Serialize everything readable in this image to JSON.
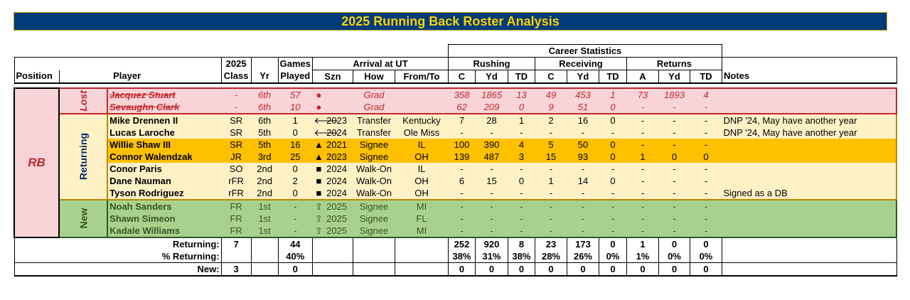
{
  "title": "2025 Running Back Roster Analysis",
  "headers": {
    "career_statistics": "Career Statistics",
    "rushing": "Rushing",
    "receiving": "Receiving",
    "returns": "Returns",
    "position": "Position",
    "player": "Player",
    "class_top": "2025",
    "class_bottom": "Class",
    "yr": "Yr",
    "games_top": "Games",
    "games_bottom": "Played",
    "arrival": "Arrival at UT",
    "szn": "Szn",
    "how": "How",
    "fromto": "From/To",
    "c": "C",
    "yd": "Yd",
    "td": "TD",
    "a": "A",
    "notes": "Notes"
  },
  "position_label": "RB",
  "groups": {
    "lost": "Lost",
    "returning": "Returning",
    "new": "New"
  },
  "icons": {
    "dot": "●",
    "arrow_left": "🡐",
    "triangle": "▲",
    "square": "■",
    "outline_up": "⇧"
  },
  "players": [
    {
      "group": "lost",
      "name": "Jacquez Stuart",
      "cls": "-",
      "yr": "6th",
      "gp": "57",
      "icon": "●",
      "szn": "",
      "how": "Grad",
      "from": "",
      "rc": "358",
      "ryd": "1865",
      "rtd": "13",
      "cc": "49",
      "cyd": "453",
      "ctd": "1",
      "ra": "73",
      "ryd2": "1893",
      "rtd2": "4",
      "notes": ""
    },
    {
      "group": "lost",
      "name": "Sevaughn Clark",
      "cls": "-",
      "yr": "6th",
      "gp": "10",
      "icon": "●",
      "szn": "",
      "how": "Grad",
      "from": "",
      "rc": "62",
      "ryd": "209",
      "rtd": "0",
      "cc": "9",
      "cyd": "51",
      "ctd": "0",
      "ra": "-",
      "ryd2": "-",
      "rtd2": "-",
      "notes": ""
    },
    {
      "group": "ret",
      "hl": false,
      "name": "Mike Drennen II",
      "cls": "SR",
      "yr": "6th",
      "gp": "1",
      "icon": "🡐",
      "szn": "2023",
      "how": "Transfer",
      "from": "Kentucky",
      "rc": "7",
      "ryd": "28",
      "rtd": "1",
      "cc": "2",
      "cyd": "16",
      "ctd": "0",
      "ra": "-",
      "ryd2": "-",
      "rtd2": "-",
      "notes": "DNP '24, May have another year"
    },
    {
      "group": "ret",
      "hl": false,
      "name": "Lucas Laroche",
      "cls": "SR",
      "yr": "5th",
      "gp": "0",
      "icon": "🡐",
      "szn": "2024",
      "how": "Transfer",
      "from": "Ole Miss",
      "rc": "-",
      "ryd": "-",
      "rtd": "-",
      "cc": "-",
      "cyd": "-",
      "ctd": "-",
      "ra": "-",
      "ryd2": "-",
      "rtd2": "-",
      "notes": "DNP '24, May have another year"
    },
    {
      "group": "ret",
      "hl": true,
      "name": "Willie Shaw III",
      "cls": "SR",
      "yr": "5th",
      "gp": "16",
      "icon": "▲",
      "szn": "2021",
      "how": "Signee",
      "from": "IL",
      "rc": "100",
      "ryd": "390",
      "rtd": "4",
      "cc": "5",
      "cyd": "50",
      "ctd": "0",
      "ra": "-",
      "ryd2": "-",
      "rtd2": "-",
      "notes": ""
    },
    {
      "group": "ret",
      "hl": true,
      "name": "Connor Walendzak",
      "cls": "JR",
      "yr": "3rd",
      "gp": "25",
      "icon": "▲",
      "szn": "2023",
      "how": "Signee",
      "from": "OH",
      "rc": "139",
      "ryd": "487",
      "rtd": "3",
      "cc": "15",
      "cyd": "93",
      "ctd": "0",
      "ra": "1",
      "ryd2": "0",
      "rtd2": "0",
      "notes": ""
    },
    {
      "group": "ret",
      "hl": false,
      "name": "Conor Paris",
      "cls": "SO",
      "yr": "2nd",
      "gp": "0",
      "icon": "■",
      "szn": "2024",
      "how": "Walk-On",
      "from": "IL",
      "rc": "-",
      "ryd": "-",
      "rtd": "-",
      "cc": "-",
      "cyd": "-",
      "ctd": "-",
      "ra": "-",
      "ryd2": "-",
      "rtd2": "-",
      "notes": ""
    },
    {
      "group": "ret",
      "hl": false,
      "name": "Dane Nauman",
      "cls": "rFR",
      "yr": "2nd",
      "gp": "2",
      "icon": "■",
      "szn": "2024",
      "how": "Walk-On",
      "from": "OH",
      "rc": "6",
      "ryd": "15",
      "rtd": "0",
      "cc": "1",
      "cyd": "14",
      "ctd": "0",
      "ra": "-",
      "ryd2": "-",
      "rtd2": "-",
      "notes": ""
    },
    {
      "group": "ret",
      "hl": false,
      "name": "Tyson Rodriguez",
      "cls": "rFR",
      "yr": "2nd",
      "gp": "0",
      "icon": "■",
      "szn": "2024",
      "how": "Walk-On",
      "from": "OH",
      "rc": "-",
      "ryd": "-",
      "rtd": "-",
      "cc": "-",
      "cyd": "-",
      "ctd": "-",
      "ra": "-",
      "ryd2": "-",
      "rtd2": "-",
      "notes": "Signed as a DB"
    },
    {
      "group": "new",
      "name": "Noah Sanders",
      "cls": "FR",
      "yr": "1st",
      "gp": "-",
      "icon": "⇧",
      "szn": "2025",
      "how": "Signee",
      "from": "MI",
      "rc": "-",
      "ryd": "-",
      "rtd": "-",
      "cc": "-",
      "cyd": "-",
      "ctd": "-",
      "ra": "-",
      "ryd2": "-",
      "rtd2": "-",
      "notes": ""
    },
    {
      "group": "new",
      "name": "Shawn Simeon",
      "cls": "FR",
      "yr": "1st",
      "gp": "-",
      "icon": "⇧",
      "szn": "2025",
      "how": "Signee",
      "from": "FL",
      "rc": "-",
      "ryd": "-",
      "rtd": "-",
      "cc": "-",
      "cyd": "-",
      "ctd": "-",
      "ra": "-",
      "ryd2": "-",
      "rtd2": "-",
      "notes": ""
    },
    {
      "group": "new",
      "name": "Kadale Williams",
      "cls": "FR",
      "yr": "1st",
      "gp": "-",
      "icon": "⇧",
      "szn": "2025",
      "how": "Signee",
      "from": "MI",
      "rc": "-",
      "ryd": "-",
      "rtd": "-",
      "cc": "-",
      "cyd": "-",
      "ctd": "-",
      "ra": "-",
      "ryd2": "-",
      "rtd2": "-",
      "notes": ""
    }
  ],
  "summary": [
    {
      "label": "Returning:",
      "cls": "7",
      "gp": "44",
      "rc": "252",
      "ryd": "920",
      "rtd": "8",
      "cc": "23",
      "cyd": "173",
      "ctd": "0",
      "ra": "1",
      "ryd2": "0",
      "rtd2": "0"
    },
    {
      "label": "% Returning:",
      "cls": "",
      "gp": "40%",
      "rc": "38%",
      "ryd": "31%",
      "rtd": "38%",
      "cc": "28%",
      "cyd": "26%",
      "ctd": "0%",
      "ra": "1%",
      "ryd2": "0%",
      "rtd2": "0%"
    },
    {
      "label": "New:",
      "cls": "3",
      "gp": "0",
      "rc": "0",
      "ryd": "0",
      "rtd": "0",
      "cc": "0",
      "cyd": "0",
      "ctd": "0",
      "ra": "0",
      "ryd2": "0",
      "rtd2": "0"
    }
  ]
}
